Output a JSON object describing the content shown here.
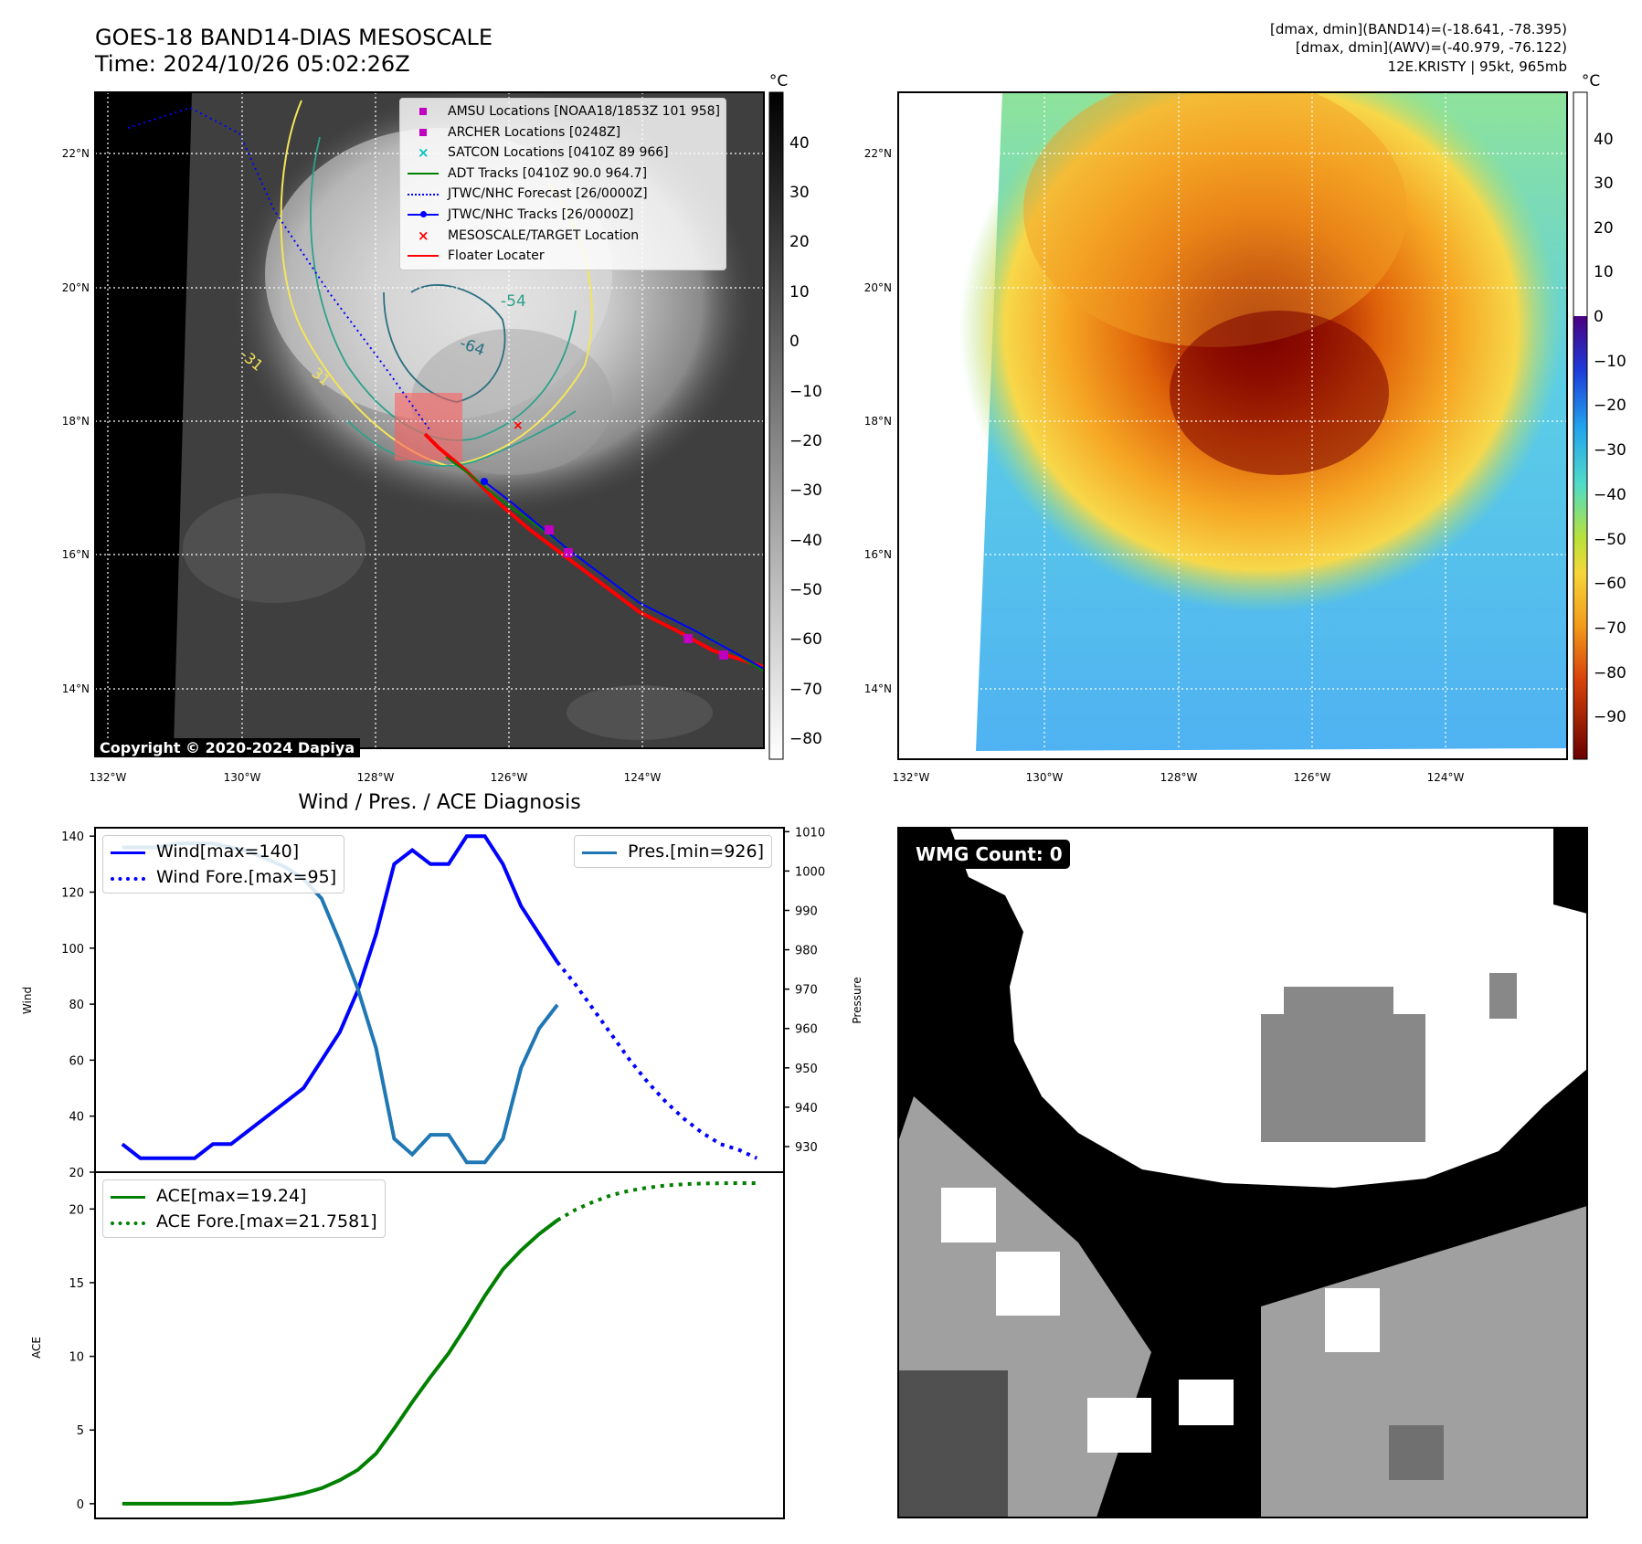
{
  "header": {
    "title": "GOES-18 BAND14-DIAS MESOSCALE",
    "time": "Time: 2024/10/26 05:02:26Z",
    "band14_range": "[dmax, dmin](BAND14)=(-18.641, -78.395)",
    "awv_range": "[dmax, dmin](AWV)=(-40.979, -76.122)",
    "storm_info": "12E.KRISTY | 95kt, 965mb"
  },
  "map_axes": {
    "lat_labels": [
      "22°N",
      "20°N",
      "18°N",
      "16°N",
      "14°N"
    ],
    "lon_labels": [
      "132°W",
      "130°W",
      "128°W",
      "126°W",
      "124°W"
    ]
  },
  "ir_panel": {
    "copyright": "Copyright © 2020-2024 Dapiya",
    "colorbar_unit": "°C",
    "colorbar_ticks": [
      "40",
      "30",
      "20",
      "10",
      "0",
      "−10",
      "−20",
      "−30",
      "−40",
      "−50",
      "−60",
      "−70",
      "−80"
    ],
    "contour_labels": [
      "-31",
      "31",
      "-54",
      "-64"
    ],
    "legend": [
      {
        "label": "AMSU Locations [NOAA18/1853Z 101 958]",
        "symbol": "square",
        "color": "#c000c0"
      },
      {
        "label": "ARCHER Locations [0248Z]",
        "symbol": "square",
        "color": "#c000c0"
      },
      {
        "label": "SATCON Locations [0410Z 89 966]",
        "symbol": "x",
        "color": "#00c0c0"
      },
      {
        "label": "ADT Tracks [0410Z 90.0 964.7]",
        "symbol": "line",
        "color": "#008000"
      },
      {
        "label": "JTWC/NHC Forecast [26/0000Z]",
        "symbol": "dotted",
        "color": "#0000ff"
      },
      {
        "label": "JTWC/NHC Tracks [26/0000Z]",
        "symbol": "line-dot",
        "color": "#0000ff"
      },
      {
        "label": "MESOSCALE/TARGET Location",
        "symbol": "x",
        "color": "#ff0000"
      },
      {
        "label": "Floater Locater",
        "symbol": "line",
        "color": "#ff0000"
      }
    ]
  },
  "awv_panel": {
    "colorbar_unit": "°C",
    "colorbar_ticks": [
      "40",
      "30",
      "20",
      "10",
      "0",
      "−10",
      "−20",
      "−30",
      "−40",
      "−50",
      "−60",
      "−70",
      "−80",
      "−90"
    ]
  },
  "wmg_panel": {
    "badge": "WMG Count: 0"
  },
  "colors": {
    "wind": "#0000ff",
    "pressure": "#1f77b4",
    "ace": "#008000"
  },
  "chart_data": [
    {
      "type": "line",
      "title": "Wind / Pres. / ACE Diagnosis",
      "ylabel": "Wind",
      "ylabel_right": "Pressure",
      "ylim": [
        20,
        143
      ],
      "y_ticks": [
        20,
        40,
        60,
        80,
        100,
        120,
        140
      ],
      "ylim_right": [
        923.5,
        1011
      ],
      "y_ticks_right": [
        930,
        940,
        950,
        960,
        970,
        980,
        990,
        1000,
        1010
      ],
      "x": [
        0,
        1,
        2,
        3,
        4,
        5,
        6,
        7,
        8,
        9,
        10,
        11,
        12,
        13,
        14,
        15,
        16,
        17,
        18,
        19,
        20,
        21,
        22,
        23,
        24,
        25,
        26,
        27,
        28,
        29,
        30,
        31,
        32,
        33,
        34,
        35
      ],
      "series": [
        {
          "name": "Wind[max=140]",
          "axis": "left",
          "style": "solid",
          "color": "#0000ff",
          "x": [
            0,
            1,
            2,
            3,
            4,
            5,
            6,
            7,
            8,
            9,
            10,
            11,
            12,
            13,
            14,
            15,
            16,
            17,
            18,
            19,
            20,
            21,
            22,
            23,
            24
          ],
          "values": [
            30,
            25,
            25,
            25,
            25,
            30,
            30,
            35,
            40,
            45,
            50,
            60,
            70,
            85,
            105,
            130,
            135,
            130,
            130,
            140,
            140,
            130,
            115,
            105,
            95
          ]
        },
        {
          "name": "Wind Fore.[max=95]",
          "axis": "left",
          "style": "dotted",
          "color": "#0000ff",
          "x": [
            24,
            25,
            26,
            27,
            28,
            29,
            30,
            31,
            32,
            33,
            34,
            35
          ],
          "values": [
            95,
            87,
            78,
            69,
            60,
            52,
            45,
            39,
            34,
            30,
            28,
            25
          ]
        },
        {
          "name": "Pres.[min=926]",
          "axis": "right",
          "style": "solid",
          "color": "#1f77b4",
          "x": [
            0,
            1,
            2,
            3,
            4,
            5,
            6,
            7,
            8,
            9,
            10,
            11,
            12,
            13,
            14,
            15,
            16,
            17,
            18,
            19,
            20,
            21,
            22,
            23,
            24
          ],
          "values": [
            1006,
            1006,
            1006,
            1007,
            1007,
            1007,
            1006,
            1005,
            1003,
            1001,
            998,
            993,
            982,
            970,
            955,
            932,
            928,
            933,
            933,
            926,
            926,
            932,
            950,
            960,
            966
          ]
        }
      ]
    },
    {
      "type": "line",
      "ylabel": "ACE",
      "ylim": [
        -1,
        22.5
      ],
      "y_ticks": [
        0,
        5,
        10,
        15,
        20
      ],
      "series": [
        {
          "name": "ACE[max=19.24]",
          "style": "solid",
          "color": "#008000",
          "x": [
            0,
            1,
            2,
            3,
            4,
            5,
            6,
            7,
            8,
            9,
            10,
            11,
            12,
            13,
            14,
            15,
            16,
            17,
            18,
            19,
            20,
            21,
            22,
            23,
            24
          ],
          "values": [
            0,
            0,
            0,
            0,
            0,
            0,
            0,
            0.1,
            0.25,
            0.45,
            0.7,
            1.05,
            1.6,
            2.3,
            3.4,
            5.1,
            6.9,
            8.6,
            10.2,
            12.1,
            14.1,
            15.9,
            17.2,
            18.3,
            19.24
          ]
        },
        {
          "name": "ACE Fore.[max=21.7581]",
          "style": "dotted",
          "color": "#008000",
          "x": [
            24,
            25,
            26,
            27,
            28,
            29,
            30,
            31,
            32,
            33,
            34,
            35
          ],
          "values": [
            19.24,
            19.95,
            20.5,
            20.95,
            21.25,
            21.45,
            21.6,
            21.68,
            21.73,
            21.75,
            21.758,
            21.7581
          ]
        }
      ]
    }
  ]
}
